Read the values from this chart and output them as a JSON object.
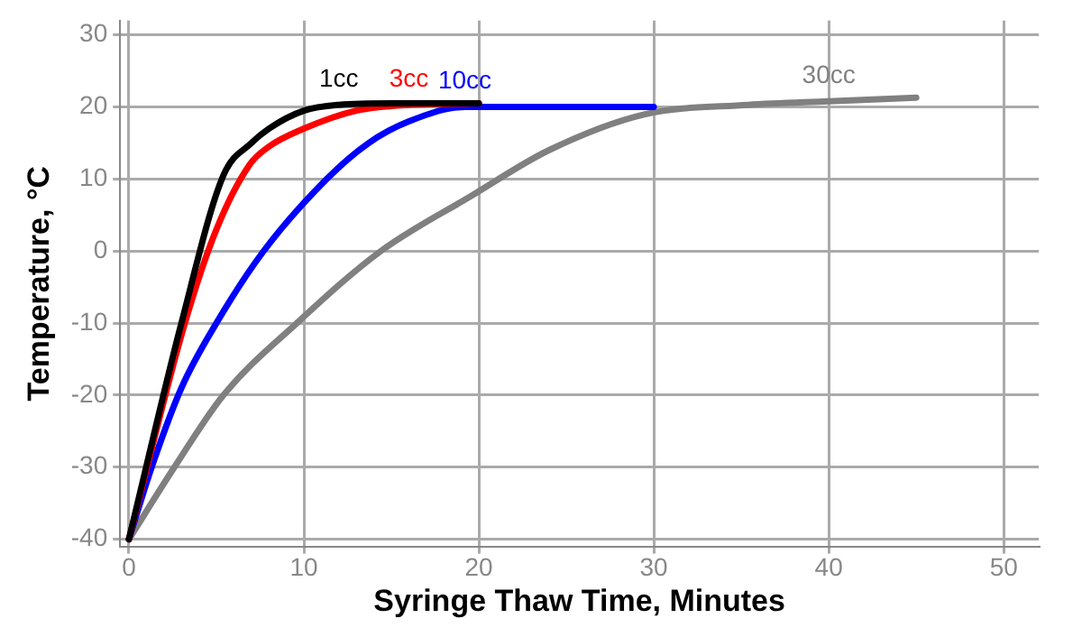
{
  "chart_data": {
    "type": "line",
    "xlabel": "Syringe Thaw Time, Minutes",
    "ylabel": "Temperature, °C",
    "xlim": [
      -0.5,
      52
    ],
    "xticks": [
      0,
      10,
      20,
      30,
      40,
      50
    ],
    "ylim": [
      -41,
      32
    ],
    "yticks": [
      -40,
      -30,
      -20,
      -10,
      0,
      10,
      20,
      30
    ],
    "grid": true,
    "legend": false,
    "marker": "none",
    "line_style": "solid",
    "series": [
      {
        "name": "1cc",
        "color": "#000000",
        "x": [
          0,
          3,
          5.4,
          7,
          8,
          10,
          12,
          15,
          20
        ],
        "values": [
          -40,
          -10,
          10.5,
          15,
          17,
          19.5,
          20.3,
          20.5,
          20.5
        ]
      },
      {
        "name": "3cc",
        "color": "#ff0000",
        "x": [
          0,
          3.2,
          5,
          6.9,
          8,
          10,
          13,
          16,
          20
        ],
        "values": [
          -40,
          -10,
          3,
          12,
          14.5,
          17,
          19.5,
          20.3,
          20.5
        ]
      },
      {
        "name": "10cc",
        "color": "#0000ff",
        "x": [
          0,
          1.3,
          3,
          5,
          7.7,
          11.3,
          13.7,
          16,
          19.2,
          22,
          25,
          30
        ],
        "values": [
          -40,
          -30,
          -19,
          -10,
          0,
          10,
          15,
          18,
          20,
          20,
          20,
          20
        ]
      },
      {
        "name": "30cc",
        "color": "#808080",
        "x": [
          0,
          2.6,
          5.4,
          9.6,
          14.4,
          19.6,
          24,
          29.5,
          35.4,
          40,
          45
        ],
        "values": [
          -40,
          -30,
          -20,
          -10,
          0,
          7.7,
          14,
          19,
          20.3,
          20.8,
          21.3
        ]
      }
    ]
  }
}
